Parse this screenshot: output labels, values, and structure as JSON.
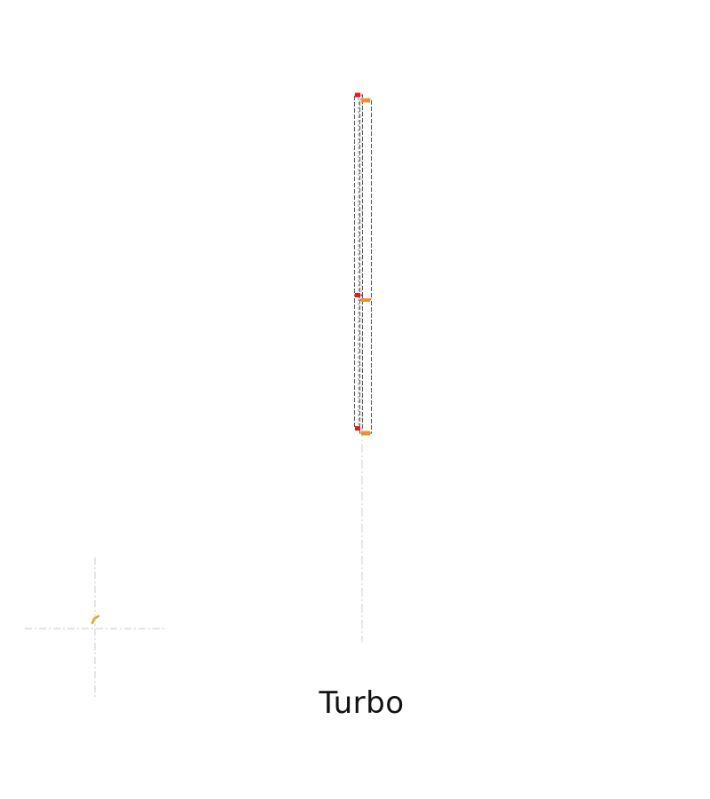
{
  "caption": "Turbo",
  "colors": {
    "background": "#ffffff",
    "outline": "#555555",
    "centerline": "#c8c8c8",
    "anchor_red": "#e21b1b",
    "anchor_orange": "#f0902a",
    "origin_marker": "#f0a020",
    "caption_text": "#111111"
  },
  "icons": {
    "origin": "origin-marker-icon"
  }
}
